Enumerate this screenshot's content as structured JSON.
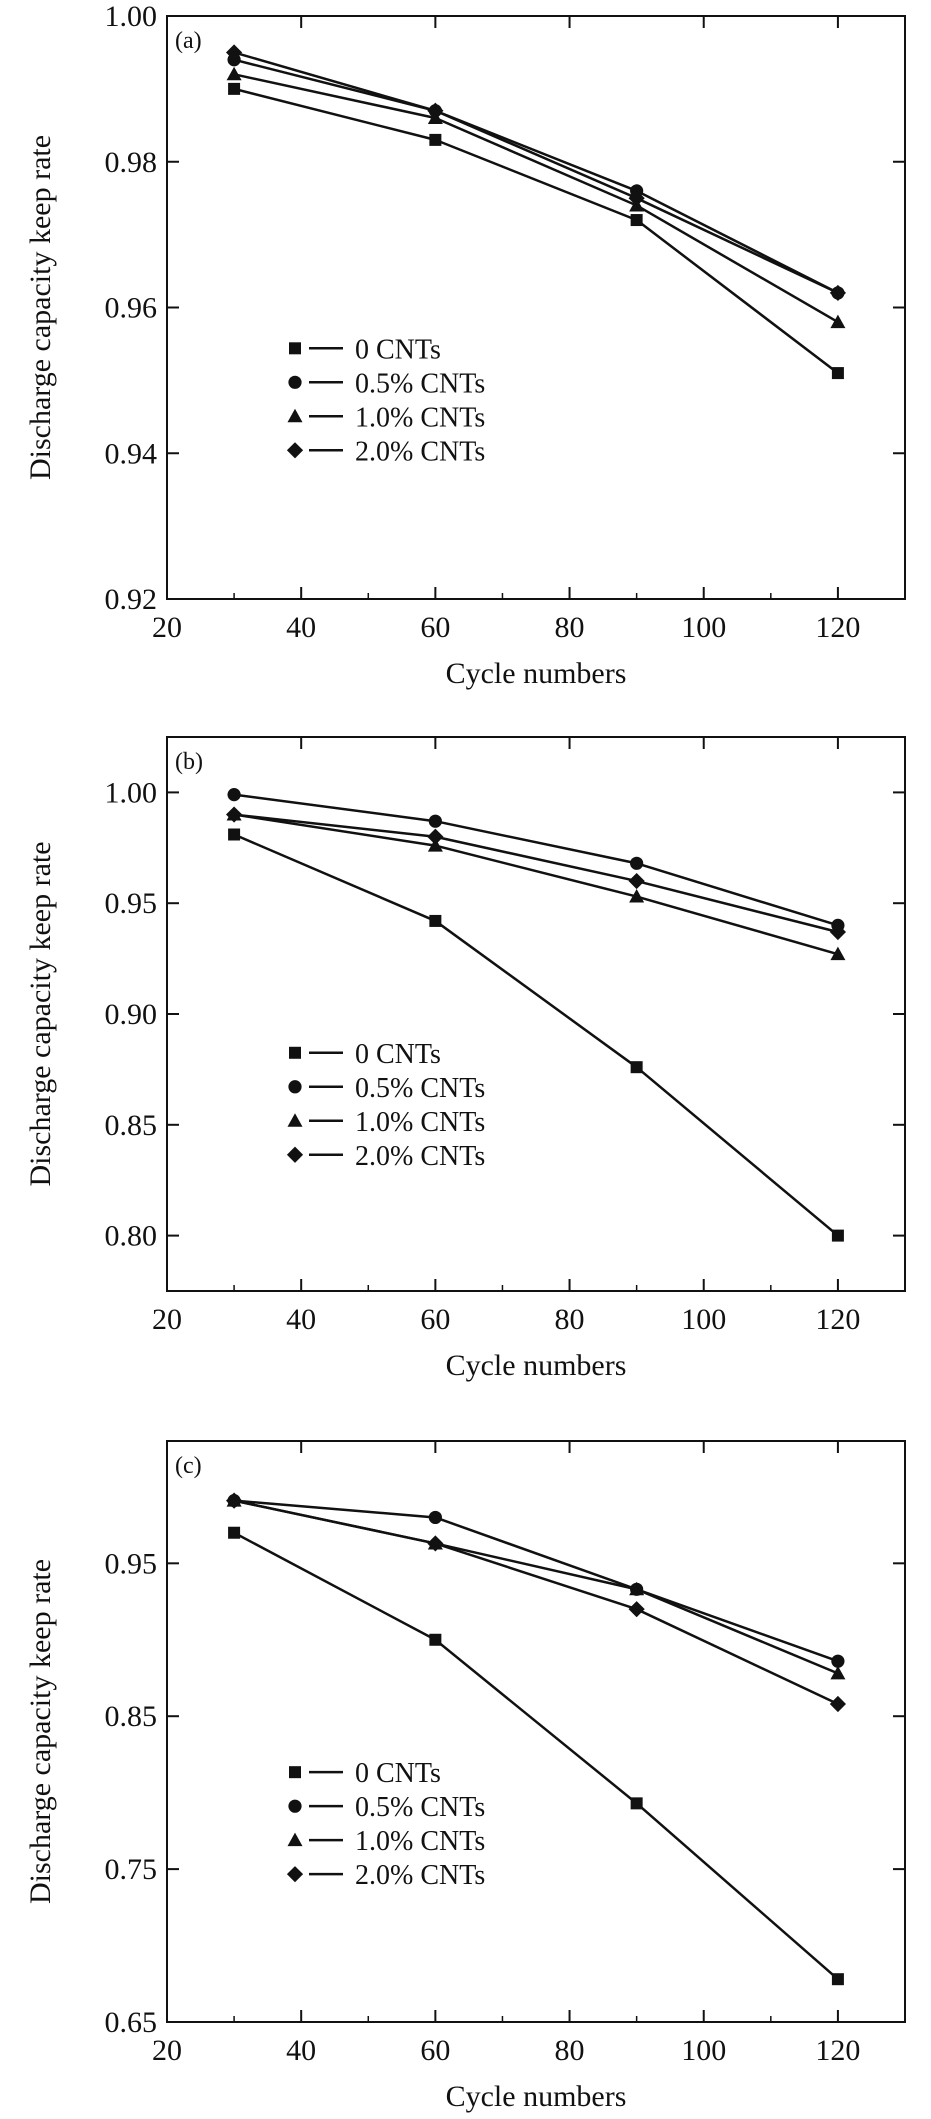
{
  "chart_data": [
    {
      "type": "line",
      "panel_label": "(a)",
      "xlabel": "Cycle numbers",
      "ylabel": "Discharge capacity keep rate",
      "xlim": [
        20,
        130
      ],
      "ylim": [
        0.92,
        1.0
      ],
      "xticks": [
        20,
        40,
        60,
        80,
        100,
        120
      ],
      "xtick_labels": [
        "20",
        "40",
        "60",
        "80",
        "100",
        "120"
      ],
      "yticks": [
        0.92,
        0.94,
        0.96,
        0.98,
        1.0
      ],
      "ytick_labels": [
        "0.92",
        "0.94",
        "0.96",
        "0.98",
        "1.00"
      ],
      "grid": false,
      "legend_position": "lower-left",
      "x": [
        30,
        60,
        90,
        120
      ],
      "series": [
        {
          "name": "0 CNTs",
          "marker": "square",
          "values": [
            0.99,
            0.983,
            0.972,
            0.951
          ]
        },
        {
          "name": "0.5% CNTs",
          "marker": "circle",
          "values": [
            0.994,
            0.987,
            0.976,
            0.962
          ]
        },
        {
          "name": "1.0% CNTs",
          "marker": "triangle",
          "values": [
            0.992,
            0.986,
            0.974,
            0.958
          ]
        },
        {
          "name": "2.0% CNTs",
          "marker": "diamond",
          "values": [
            0.995,
            0.987,
            0.975,
            0.962
          ]
        }
      ]
    },
    {
      "type": "line",
      "panel_label": "(b)",
      "xlabel": "Cycle numbers",
      "ylabel": "Discharge capacity keep rate",
      "xlim": [
        20,
        130
      ],
      "ylim": [
        0.775,
        1.025
      ],
      "xticks": [
        20,
        40,
        60,
        80,
        100,
        120
      ],
      "xtick_labels": [
        "20",
        "40",
        "60",
        "80",
        "100",
        "120"
      ],
      "yticks": [
        0.8,
        0.85,
        0.9,
        0.95,
        1.0
      ],
      "ytick_labels": [
        "0.80",
        "0.85",
        "0.90",
        "0.95",
        "1.00"
      ],
      "grid": false,
      "legend_position": "lower-left",
      "x": [
        30,
        60,
        90,
        120
      ],
      "series": [
        {
          "name": "0 CNTs",
          "marker": "square",
          "values": [
            0.981,
            0.942,
            0.876,
            0.8
          ]
        },
        {
          "name": "0.5% CNTs",
          "marker": "circle",
          "values": [
            0.999,
            0.987,
            0.968,
            0.94
          ]
        },
        {
          "name": "1.0% CNTs",
          "marker": "triangle",
          "values": [
            0.99,
            0.976,
            0.953,
            0.927
          ]
        },
        {
          "name": "2.0% CNTs",
          "marker": "diamond",
          "values": [
            0.99,
            0.98,
            0.96,
            0.937
          ]
        }
      ]
    },
    {
      "type": "line",
      "panel_label": "(c)",
      "xlabel": "Cycle numbers",
      "ylabel": "Discharge capacity keep rate",
      "xlim": [
        20,
        130
      ],
      "ylim": [
        0.65,
        1.03
      ],
      "xticks": [
        20,
        40,
        60,
        80,
        100,
        120
      ],
      "xtick_labels": [
        "20",
        "40",
        "60",
        "80",
        "100",
        "120"
      ],
      "yticks": [
        0.65,
        0.75,
        0.85,
        0.95
      ],
      "ytick_labels": [
        "0.65",
        "0.75",
        "0.85",
        "0.95"
      ],
      "grid": false,
      "legend_position": "lower-left",
      "x": [
        30,
        60,
        90,
        120
      ],
      "series": [
        {
          "name": "0 CNTs",
          "marker": "square",
          "values": [
            0.97,
            0.9,
            0.793,
            0.678
          ]
        },
        {
          "name": "0.5% CNTs",
          "marker": "circle",
          "values": [
            0.991,
            0.98,
            0.933,
            0.886
          ]
        },
        {
          "name": "1.0% CNTs",
          "marker": "triangle",
          "values": [
            0.991,
            0.963,
            0.933,
            0.878
          ]
        },
        {
          "name": "2.0% CNTs",
          "marker": "diamond",
          "values": [
            0.991,
            0.963,
            0.92,
            0.858
          ]
        }
      ]
    }
  ]
}
